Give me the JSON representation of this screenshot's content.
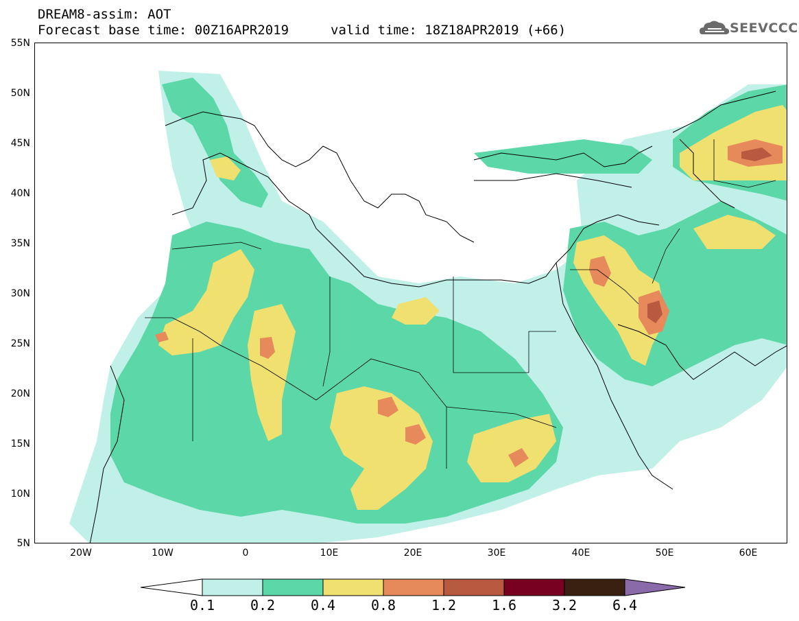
{
  "title": {
    "line1": "DREAM8-assim: AOT",
    "line2": "Forecast base time: 00Z16APR2019",
    "valid": "valid time: 18Z18APR2019 (+66)"
  },
  "logo": {
    "text": "SEEVCCC",
    "icon": "cloud-icon"
  },
  "map": {
    "lat_labels": [
      "55N",
      "50N",
      "45N",
      "40N",
      "35N",
      "30N",
      "25N",
      "20N",
      "15N",
      "10N",
      "5N"
    ],
    "lon_labels": [
      "20W",
      "10W",
      "0",
      "10E",
      "20E",
      "30E",
      "40E",
      "50E",
      "60E"
    ],
    "colors": {
      "c01": "#c0f0e8",
      "c02": "#5cd8a8",
      "c04": "#f0e070",
      "c08": "#e68a5c",
      "c12": "#b85a40",
      "c16": "#780020",
      "c32": "#3a2010",
      "c64": "#8a6aa8"
    }
  },
  "colorbar": {
    "labels": [
      "0.1",
      "0.2",
      "0.4",
      "0.8",
      "1.2",
      "1.6",
      "3.2",
      "6.4"
    ]
  }
}
